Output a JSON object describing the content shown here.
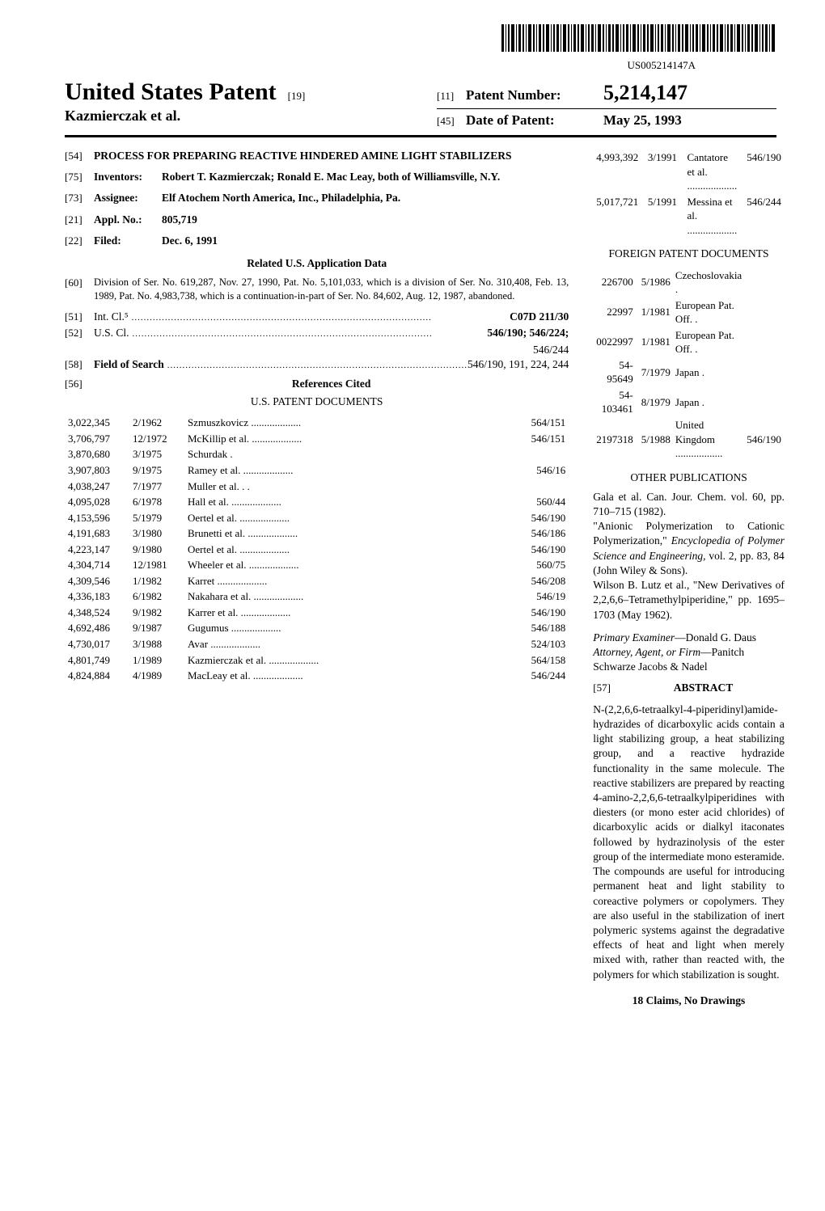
{
  "barcode_number": "US005214147A",
  "header": {
    "main_title": "United States Patent",
    "title_code": "[19]",
    "authors": "Kazmierczak et al.",
    "patent_number_code": "[11]",
    "patent_number_label": "Patent Number:",
    "patent_number": "5,214,147",
    "date_code": "[45]",
    "date_label": "Date of Patent:",
    "date_value": "May 25, 1993"
  },
  "left": {
    "title_field": {
      "code": "[54]",
      "text": "PROCESS FOR PREPARING REACTIVE HINDERED AMINE LIGHT STABILIZERS"
    },
    "inventors": {
      "code": "[75]",
      "label": "Inventors:",
      "text": "Robert T. Kazmierczak; Ronald E. Mac Leay, both of Williamsville, N.Y."
    },
    "assignee": {
      "code": "[73]",
      "label": "Assignee:",
      "text": "Elf Atochem North America, Inc., Philadelphia, Pa."
    },
    "appl": {
      "code": "[21]",
      "label": "Appl. No.:",
      "text": "805,719"
    },
    "filed": {
      "code": "[22]",
      "label": "Filed:",
      "text": "Dec. 6, 1991"
    },
    "related_heading": "Related U.S. Application Data",
    "related": {
      "code": "[60]",
      "text": "Division of Ser. No. 619,287, Nov. 27, 1990, Pat. No. 5,101,033, which is a division of Ser. No. 310,408, Feb. 13, 1989, Pat. No. 4,983,738, which is a continuation-in-part of Ser. No. 84,602, Aug. 12, 1987, abandoned."
    },
    "intcl": {
      "code": "[51]",
      "label": "Int. Cl.⁵",
      "value": "C07D 211/30"
    },
    "uscl": {
      "code": "[52]",
      "label": "U.S. Cl.",
      "value": "546/190; 546/224;",
      "value2": "546/244"
    },
    "search": {
      "code": "[58]",
      "label": "Field of Search",
      "value": "546/190, 191, 224, 244"
    },
    "refs_code": "[56]",
    "refs_heading": "References Cited",
    "us_docs_heading": "U.S. PATENT DOCUMENTS",
    "us_docs": [
      {
        "num": "3,022,345",
        "date": "2/1962",
        "name": "Szmuszkovicz",
        "cls": "564/151"
      },
      {
        "num": "3,706,797",
        "date": "12/1972",
        "name": "McKillip et al.",
        "cls": "546/151"
      },
      {
        "num": "3,870,680",
        "date": "3/1975",
        "name": "Schurdak .",
        "cls": ""
      },
      {
        "num": "3,907,803",
        "date": "9/1975",
        "name": "Ramey et al.",
        "cls": "546/16"
      },
      {
        "num": "4,038,247",
        "date": "7/1977",
        "name": "Muller et al. . .",
        "cls": ""
      },
      {
        "num": "4,095,028",
        "date": "6/1978",
        "name": "Hall et al.",
        "cls": "560/44"
      },
      {
        "num": "4,153,596",
        "date": "5/1979",
        "name": "Oertel et al.",
        "cls": "546/190"
      },
      {
        "num": "4,191,683",
        "date": "3/1980",
        "name": "Brunetti et al.",
        "cls": "546/186"
      },
      {
        "num": "4,223,147",
        "date": "9/1980",
        "name": "Oertel et al.",
        "cls": "546/190"
      },
      {
        "num": "4,304,714",
        "date": "12/1981",
        "name": "Wheeler et al.",
        "cls": "560/75"
      },
      {
        "num": "4,309,546",
        "date": "1/1982",
        "name": "Karret",
        "cls": "546/208"
      },
      {
        "num": "4,336,183",
        "date": "6/1982",
        "name": "Nakahara et al.",
        "cls": "546/19"
      },
      {
        "num": "4,348,524",
        "date": "9/1982",
        "name": "Karrer et al.",
        "cls": "546/190"
      },
      {
        "num": "4,692,486",
        "date": "9/1987",
        "name": "Gugumus",
        "cls": "546/188"
      },
      {
        "num": "4,730,017",
        "date": "3/1988",
        "name": "Avar",
        "cls": "524/103"
      },
      {
        "num": "4,801,749",
        "date": "1/1989",
        "name": "Kazmierczak et al.",
        "cls": "564/158"
      },
      {
        "num": "4,824,884",
        "date": "4/1989",
        "name": "MacLeay et al.",
        "cls": "546/244"
      }
    ]
  },
  "right": {
    "us_docs_cont": [
      {
        "num": "4,993,392",
        "date": "3/1991",
        "name": "Cantatore et al.",
        "cls": "546/190"
      },
      {
        "num": "5,017,721",
        "date": "5/1991",
        "name": "Messina et al.",
        "cls": "546/244"
      }
    ],
    "foreign_heading": "FOREIGN PATENT DOCUMENTS",
    "foreign_docs": [
      {
        "num": "226700",
        "date": "5/1986",
        "country": "Czechoslovakia .",
        "cls": ""
      },
      {
        "num": "22997",
        "date": "1/1981",
        "country": "European Pat. Off. .",
        "cls": ""
      },
      {
        "num": "0022997",
        "date": "1/1981",
        "country": "European Pat. Off. .",
        "cls": ""
      },
      {
        "num": "54-95649",
        "date": "7/1979",
        "country": "Japan .",
        "cls": ""
      },
      {
        "num": "54-103461",
        "date": "8/1979",
        "country": "Japan .",
        "cls": ""
      },
      {
        "num": "2197318",
        "date": "5/1988",
        "country": "United Kingdom",
        "cls": "546/190"
      }
    ],
    "other_pub_heading": "OTHER PUBLICATIONS",
    "other_pubs": [
      "Gala et al. Can. Jour. Chem. vol. 60, pp. 710–715 (1982).",
      "\"Anionic Polymerization to Cationic Polymerization,\" Encyclopedia of Polymer Science and Engineering, vol. 2, pp. 83, 84 (John Wiley & Sons).",
      "Wilson B. Lutz et al., \"New Derivatives of 2,2,6,6–Tetramethylpiperidine,\" pp. 1695–1703 (May 1962)."
    ],
    "examiner_label": "Primary Examiner",
    "examiner": "—Donald G. Daus",
    "attorney_label": "Attorney, Agent, or Firm",
    "attorney": "—Panitch Schwarze Jacobs & Nadel",
    "abstract_code": "[57]",
    "abstract_label": "ABSTRACT",
    "abstract": "N-(2,2,6,6-tetraalkyl-4-piperidinyl)amide-hydrazides of dicarboxylic acids contain a light stabilizing group, a heat stabilizing group, and a reactive hydrazide functionality in the same molecule. The reactive stabilizers are prepared by reacting 4-amino-2,2,6,6-tetraalkylpiperidines with diesters (or mono ester acid chlorides) of dicarboxylic acids or dialkyl itaconates followed by hydrazinolysis of the ester group of the intermediate mono esteramide. The compounds are useful for introducing permanent heat and light stability to coreactive polymers or copolymers. They are also useful in the stabilization of inert polymeric systems against the degradative effects of heat and light when merely mixed with, rather than reacted with, the polymers for which stabilization is sought.",
    "claims_line": "18 Claims, No Drawings"
  }
}
